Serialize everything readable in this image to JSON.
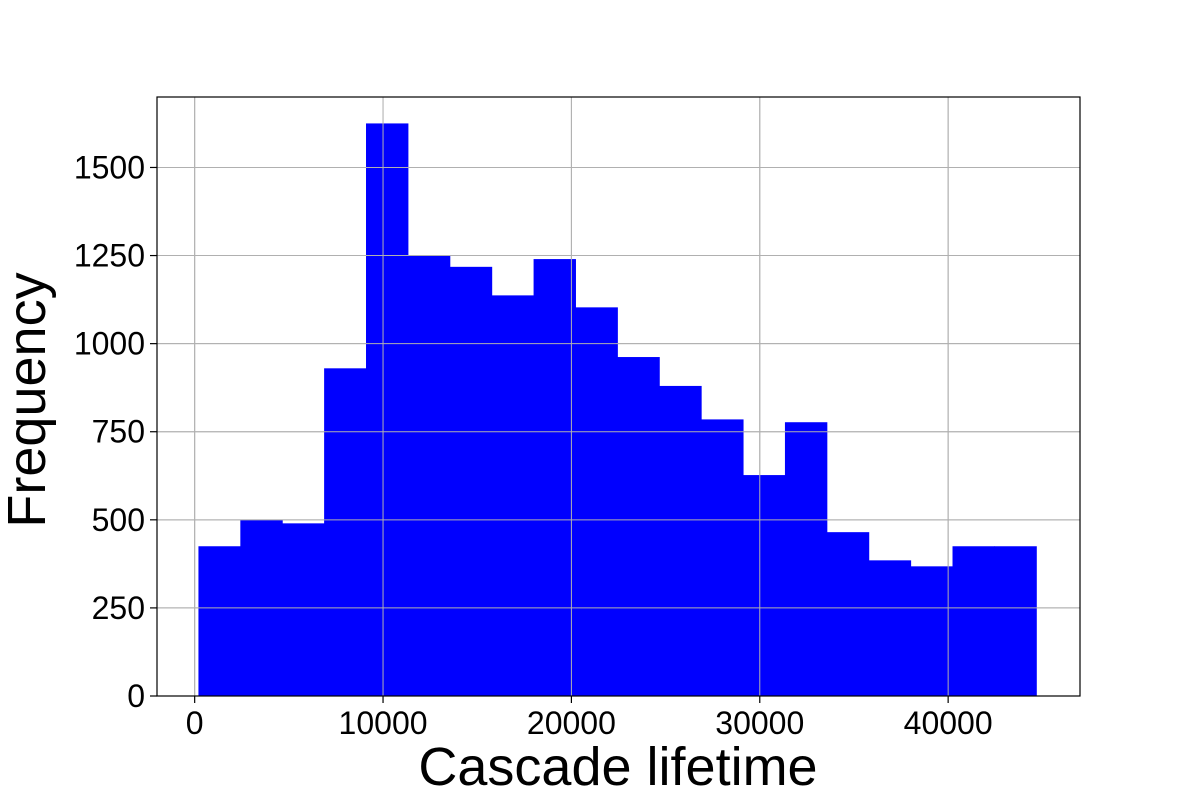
{
  "chart_data": {
    "type": "bar",
    "subtype": "histogram",
    "title": "",
    "xlabel": "Cascade lifetime",
    "ylabel": "Frequency",
    "xlim": [
      -2000,
      47000
    ],
    "ylim": [
      0,
      1700
    ],
    "xticks": [
      0,
      10000,
      20000,
      30000,
      40000
    ],
    "yticks": [
      0,
      250,
      500,
      750,
      1000,
      1250,
      1500
    ],
    "grid": true,
    "legend": "none",
    "bar_color": "#0000ff",
    "bin_edges": [
      200,
      2424,
      4648,
      6872,
      9096,
      11320,
      13544,
      15768,
      17992,
      20216,
      22440,
      24664,
      26888,
      29112,
      31336,
      33560,
      35784,
      38008,
      40232,
      42456,
      44680
    ],
    "values": [
      425,
      500,
      490,
      930,
      1625,
      1250,
      1218,
      1137,
      1240,
      1103,
      962,
      880,
      785,
      627,
      777,
      465,
      385,
      368,
      425,
      425
    ]
  }
}
